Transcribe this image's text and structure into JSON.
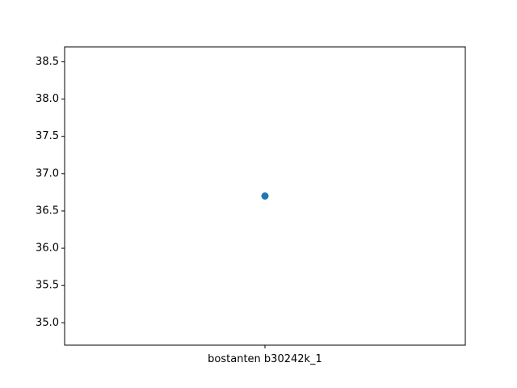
{
  "chart_data": {
    "type": "scatter",
    "title": "",
    "xlabel": "",
    "ylabel": "",
    "categories": [
      "bostanten b30242k_1"
    ],
    "values": [
      36.7
    ],
    "ylim": [
      34.7,
      38.7
    ],
    "yticks": [
      35.0,
      35.5,
      36.0,
      36.5,
      37.0,
      37.5,
      38.0,
      38.5
    ],
    "ytick_labels": [
      "35.0",
      "35.5",
      "36.0",
      "36.5",
      "37.0",
      "37.5",
      "38.0",
      "38.5"
    ],
    "grid": false,
    "marker_color": "#1f77b4"
  }
}
